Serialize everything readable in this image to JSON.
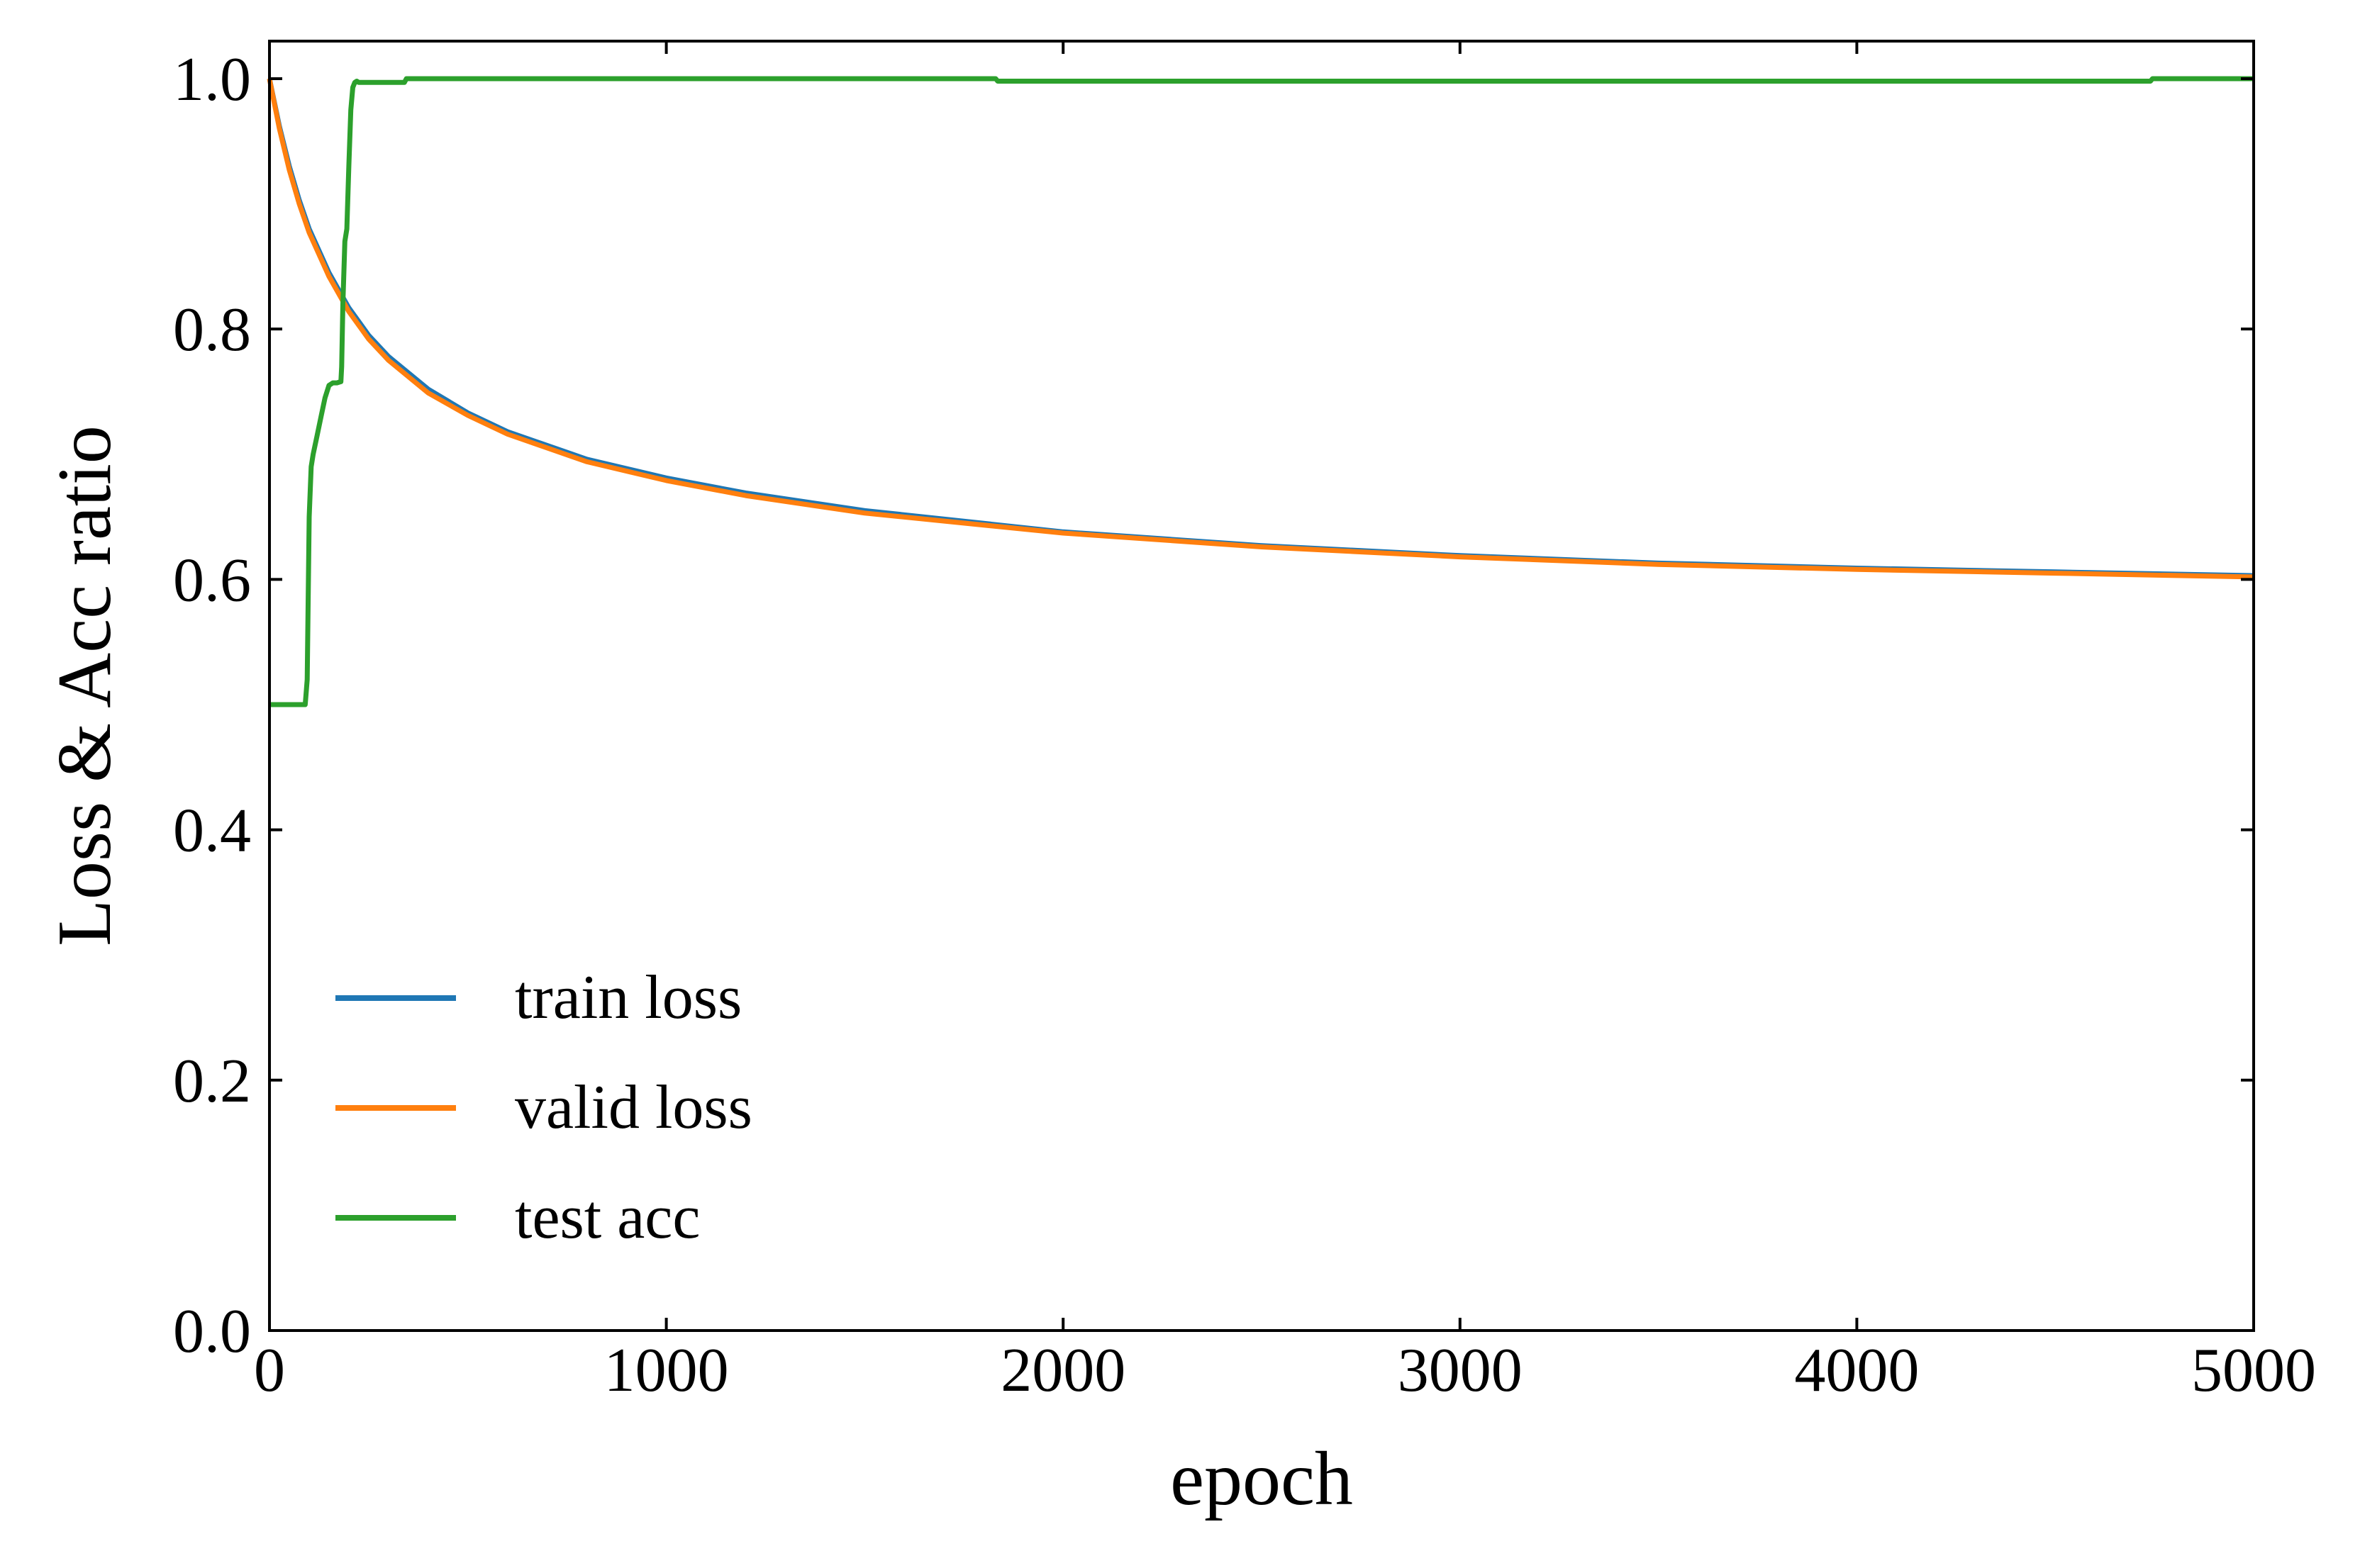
{
  "chart_data": {
    "type": "line",
    "title": "",
    "xlabel": "epoch",
    "ylabel": "Loss & Acc ratio",
    "xlim": [
      0,
      5000
    ],
    "ylim": [
      0.0,
      1.03
    ],
    "xticks": [
      0,
      1000,
      2000,
      3000,
      4000,
      5000
    ],
    "xtick_labels": [
      "0",
      "1000",
      "2000",
      "3000",
      "4000",
      "5000"
    ],
    "yticks": [
      0.0,
      0.2,
      0.4,
      0.6,
      0.8,
      1.0
    ],
    "ytick_labels": [
      "0.0",
      "0.2",
      "0.4",
      "0.6",
      "0.8",
      "1.0"
    ],
    "grid": false,
    "legend_position": "lower-left",
    "series": [
      {
        "name": "train loss",
        "color": "#1f77b4",
        "x": [
          0,
          25,
          50,
          75,
          100,
          150,
          200,
          250,
          300,
          400,
          500,
          600,
          800,
          1000,
          1200,
          1500,
          2000,
          2500,
          3000,
          3500,
          4000,
          4500,
          5000
        ],
        "y": [
          1.0,
          0.962,
          0.93,
          0.903,
          0.88,
          0.845,
          0.817,
          0.795,
          0.778,
          0.752,
          0.733,
          0.718,
          0.696,
          0.681,
          0.669,
          0.655,
          0.638,
          0.627,
          0.619,
          0.613,
          0.609,
          0.606,
          0.603
        ]
      },
      {
        "name": "valid loss",
        "color": "#ff7f0e",
        "x": [
          0,
          25,
          50,
          75,
          100,
          150,
          200,
          250,
          300,
          400,
          500,
          600,
          800,
          1000,
          1200,
          1500,
          2000,
          2500,
          3000,
          3500,
          4000,
          4500,
          5000
        ],
        "y": [
          1.0,
          0.96,
          0.927,
          0.9,
          0.877,
          0.842,
          0.814,
          0.792,
          0.775,
          0.749,
          0.731,
          0.716,
          0.694,
          0.679,
          0.667,
          0.653,
          0.637,
          0.626,
          0.618,
          0.612,
          0.608,
          0.605,
          0.602
        ]
      },
      {
        "name": "test acc",
        "color": "#2ca02c",
        "x": [
          0,
          90,
          95,
          100,
          105,
          110,
          120,
          130,
          140,
          150,
          160,
          170,
          180,
          182,
          185,
          190,
          195,
          200,
          205,
          210,
          215,
          220,
          225,
          340,
          345,
          1830,
          1835,
          4740,
          4745,
          5000
        ],
        "y": [
          0.5,
          0.5,
          0.52,
          0.65,
          0.69,
          0.7,
          0.715,
          0.73,
          0.745,
          0.755,
          0.757,
          0.757,
          0.758,
          0.77,
          0.82,
          0.87,
          0.88,
          0.93,
          0.975,
          0.993,
          0.997,
          0.998,
          0.997,
          0.997,
          1.0,
          1.0,
          0.998,
          0.998,
          1.0,
          1.0
        ]
      }
    ]
  }
}
